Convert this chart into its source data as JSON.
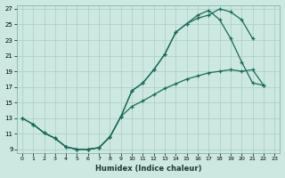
{
  "xlabel": "Humidex (Indice chaleur)",
  "bg_color": "#cce8e0",
  "grid_color": "#aaccc4",
  "line_color": "#1a6b5a",
  "xlim": [
    -0.5,
    23.5
  ],
  "ylim": [
    8.5,
    27.5
  ],
  "xticks": [
    0,
    1,
    2,
    3,
    4,
    5,
    6,
    7,
    8,
    9,
    10,
    11,
    12,
    13,
    14,
    15,
    16,
    17,
    18,
    19,
    20,
    21,
    22,
    23
  ],
  "yticks": [
    9,
    11,
    13,
    15,
    17,
    19,
    21,
    23,
    25,
    27
  ],
  "curve_upper_x": [
    0,
    1,
    2,
    3,
    4,
    5,
    6,
    7,
    8,
    9,
    10,
    11,
    12,
    13,
    14,
    15,
    16,
    17,
    18,
    19,
    20,
    21
  ],
  "curve_upper_y": [
    13.0,
    12.2,
    11.1,
    10.4,
    9.3,
    9.0,
    9.0,
    9.2,
    10.6,
    13.2,
    16.5,
    17.5,
    19.2,
    21.2,
    24.0,
    25.1,
    25.8,
    26.2,
    27.0,
    26.6,
    25.6,
    23.2
  ],
  "curve_middle_x": [
    0,
    1,
    2,
    3,
    4,
    5,
    6,
    7,
    8,
    9,
    10,
    11,
    12,
    13,
    14,
    15,
    16,
    17,
    18,
    19,
    20,
    21,
    22
  ],
  "curve_middle_y": [
    13.0,
    12.2,
    11.1,
    10.4,
    9.3,
    9.0,
    9.0,
    9.2,
    10.6,
    13.2,
    14.5,
    15.2,
    16.0,
    16.8,
    17.4,
    18.0,
    18.4,
    18.8,
    19.0,
    19.2,
    19.0,
    19.2,
    17.2
  ],
  "curve_lower_x": [
    1,
    2,
    3,
    4,
    5,
    6,
    7,
    8,
    9,
    10,
    11,
    12,
    13,
    14,
    15,
    16,
    17,
    18,
    19,
    20,
    21,
    22
  ],
  "curve_lower_y": [
    12.2,
    11.1,
    10.4,
    9.3,
    9.0,
    9.0,
    9.2,
    10.6,
    13.2,
    16.5,
    17.5,
    19.2,
    21.2,
    24.0,
    25.1,
    26.2,
    26.8,
    25.6,
    23.2,
    20.2,
    17.5,
    17.2
  ]
}
